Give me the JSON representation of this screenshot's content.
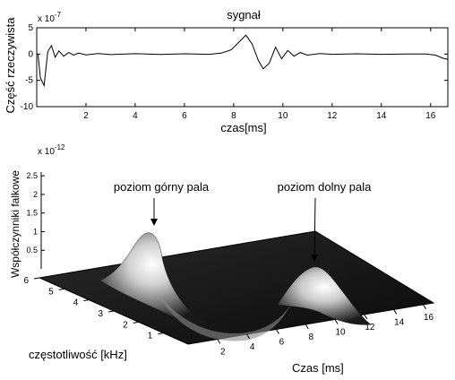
{
  "chart_data": [
    {
      "type": "line",
      "title": "sygnał",
      "xlabel": "czas[ms]",
      "ylabel": "Część rzeczywista",
      "y_exponent": "x 10",
      "y_exponent_power": "-7",
      "xlim": [
        0,
        16.7
      ],
      "ylim": [
        -10,
        5
      ],
      "x_ticks": [
        "2",
        "4",
        "6",
        "8",
        "10",
        "12",
        "14",
        "16"
      ],
      "y_ticks": [
        "5",
        "0",
        "-5",
        "-10"
      ],
      "series": [
        {
          "x": [
            0.05,
            0.15,
            0.3,
            0.45,
            0.6,
            0.75,
            0.9,
            1.1,
            1.3,
            1.5,
            1.7,
            2.0,
            2.5,
            3.0,
            4.0,
            5.0,
            6.0,
            7.0,
            7.5,
            7.9,
            8.2,
            8.5,
            8.75,
            9.0,
            9.2,
            9.45,
            9.7,
            9.95,
            10.2,
            10.45,
            10.7,
            11.0,
            11.5,
            12.0,
            13.0,
            14.0,
            15.0,
            15.8,
            16.2,
            16.5,
            16.7
          ],
          "y": [
            0,
            -4.5,
            -6,
            0.5,
            1.6,
            -0.6,
            0.6,
            -0.4,
            0.3,
            -0.2,
            0.2,
            -0.15,
            0.1,
            -0.1,
            0.08,
            -0.08,
            0.05,
            -0.05,
            0.2,
            0.8,
            2.2,
            3.6,
            1.9,
            -1.2,
            -2.8,
            -1.7,
            1.3,
            -0.9,
            0.7,
            -0.4,
            0.3,
            -0.2,
            0.1,
            -0.05,
            0.05,
            -0.04,
            0.03,
            0,
            -0.2,
            -0.8,
            -1.0
          ]
        }
      ]
    },
    {
      "type": "surface",
      "zlabel": "Współczynniki falkowe",
      "z_exponent": "x 10",
      "z_exponent_power": "-12",
      "xlabel": "Czas [ms]",
      "ylabel": "częstotliwość [kHz]",
      "xlim": [
        0,
        16.7
      ],
      "ylim": [
        0,
        6
      ],
      "zlim": [
        0,
        2.6
      ],
      "x_ticks": [
        "2",
        "4",
        "6",
        "8",
        "10",
        "12",
        "14",
        "16"
      ],
      "y_ticks": [
        "1",
        "2",
        "3",
        "4",
        "5",
        "6"
      ],
      "z_ticks": [
        "0.5",
        "1",
        "1.5",
        "2",
        "2.5"
      ],
      "peaks": [
        {
          "label": "poziom górny pala",
          "time": 1.0,
          "frequency": 5.0,
          "value": 2.4
        },
        {
          "label": "poziom dolny pala",
          "time": 8.6,
          "frequency": 4.5,
          "value": 0.5
        }
      ]
    }
  ]
}
